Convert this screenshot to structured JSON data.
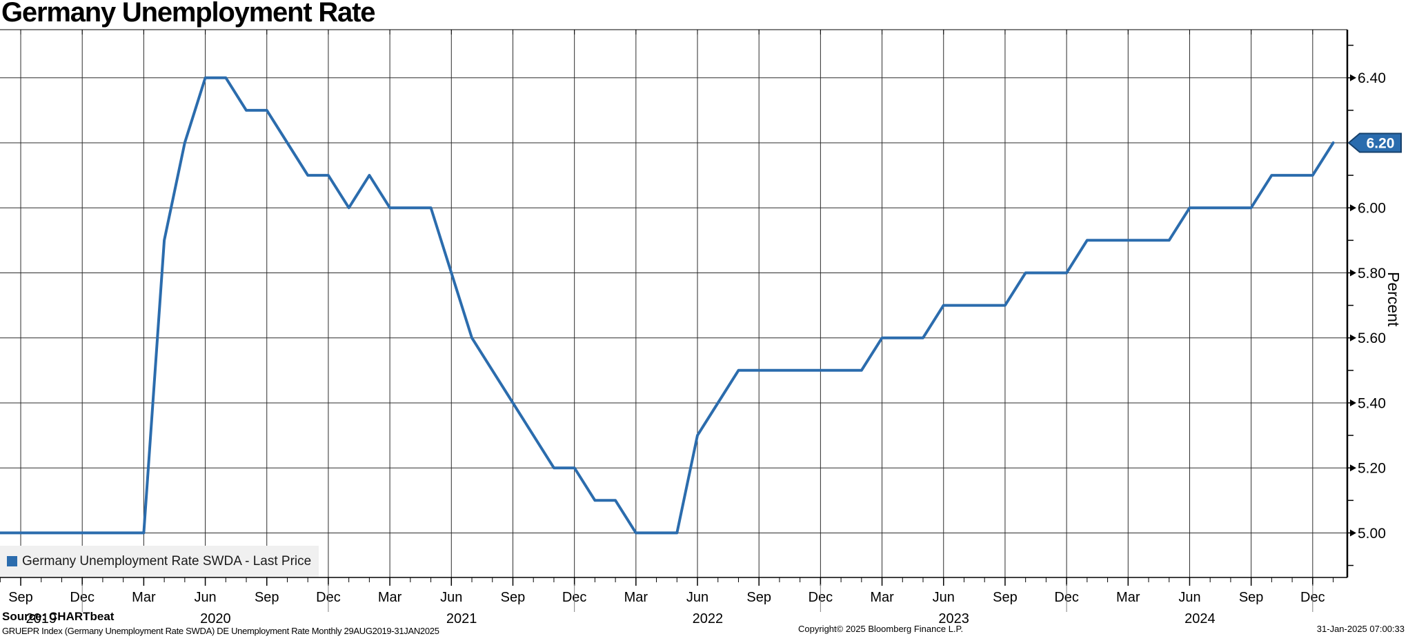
{
  "title": "Germany Unemployment Rate",
  "legend": {
    "label": "Germany Unemployment Rate SWDA - Last Price"
  },
  "y_axis_title": "Percent",
  "last_price_label": "6.20",
  "footer": {
    "source": "Source: CHARTbeat",
    "description": "GRUEPR Index (Germany Unemployment Rate SWDA) DE Unemployment Rate  Monthly 29AUG2019-31JAN2025",
    "copyright": "Copyright© 2025 Bloomberg Finance L.P.",
    "timestamp": "31-Jan-2025 07:00:33"
  },
  "colors": {
    "line": "#2B6CAD",
    "tag_fill": "#2A6CAE",
    "tag_border": "#16406B",
    "tag_text": "#FFFFFF",
    "grid": "#2b2b2b",
    "axis": "#000000",
    "year_separator": "#808080",
    "legend_bg": "#F0F0F0"
  },
  "chart_data": {
    "type": "line",
    "title": "Germany Unemployment Rate",
    "ylabel": "Percent",
    "x": [
      "Aug 2019",
      "Sep 2019",
      "Oct 2019",
      "Nov 2019",
      "Dec 2019",
      "Jan 2020",
      "Feb 2020",
      "Mar 2020",
      "Apr 2020",
      "May 2020",
      "Jun 2020",
      "Jul 2020",
      "Aug 2020",
      "Sep 2020",
      "Oct 2020",
      "Nov 2020",
      "Dec 2020",
      "Jan 2021",
      "Feb 2021",
      "Mar 2021",
      "Apr 2021",
      "May 2021",
      "Jun 2021",
      "Jul 2021",
      "Aug 2021",
      "Sep 2021",
      "Oct 2021",
      "Nov 2021",
      "Dec 2021",
      "Jan 2022",
      "Feb 2022",
      "Mar 2022",
      "Apr 2022",
      "May 2022",
      "Jun 2022",
      "Jul 2022",
      "Aug 2022",
      "Sep 2022",
      "Oct 2022",
      "Nov 2022",
      "Dec 2022",
      "Jan 2023",
      "Feb 2023",
      "Mar 2023",
      "Apr 2023",
      "May 2023",
      "Jun 2023",
      "Jul 2023",
      "Aug 2023",
      "Sep 2023",
      "Oct 2023",
      "Nov 2023",
      "Dec 2023",
      "Jan 2024",
      "Feb 2024",
      "Mar 2024",
      "Apr 2024",
      "May 2024",
      "Jun 2024",
      "Jul 2024",
      "Aug 2024",
      "Sep 2024",
      "Oct 2024",
      "Nov 2024",
      "Dec 2024",
      "Jan 2025"
    ],
    "series": [
      {
        "name": "Germany Unemployment Rate SWDA - Last Price",
        "values": [
          5.0,
          5.0,
          5.0,
          5.0,
          5.0,
          5.0,
          5.0,
          5.0,
          5.9,
          6.2,
          6.4,
          6.4,
          6.3,
          6.3,
          6.2,
          6.1,
          6.1,
          6.0,
          6.1,
          6.0,
          6.0,
          6.0,
          5.8,
          5.6,
          5.5,
          5.4,
          5.3,
          5.2,
          5.2,
          5.1,
          5.1,
          5.0,
          5.0,
          5.0,
          5.3,
          5.4,
          5.5,
          5.5,
          5.5,
          5.5,
          5.5,
          5.5,
          5.5,
          5.6,
          5.6,
          5.6,
          5.7,
          5.7,
          5.7,
          5.7,
          5.8,
          5.8,
          5.8,
          5.9,
          5.9,
          5.9,
          5.9,
          5.9,
          6.0,
          6.0,
          6.0,
          6.0,
          6.1,
          6.1,
          6.1,
          6.2
        ]
      }
    ],
    "last_price": 6.2,
    "ylim": [
      4.863,
      6.548
    ],
    "yticks_major": [
      5.0,
      5.2,
      5.4,
      5.6,
      5.8,
      6.0,
      6.2,
      6.4
    ],
    "yticks_minor": [
      4.9,
      5.1,
      5.3,
      5.5,
      5.7,
      5.9,
      6.1,
      6.3,
      6.5
    ],
    "xtick_label_months": [
      "Mar",
      "Jun",
      "Sep",
      "Dec"
    ],
    "year_labels": [
      "2019",
      "2020",
      "2021",
      "2022",
      "2023",
      "2024"
    ],
    "grid": true,
    "legend_position": "bottom-left"
  }
}
